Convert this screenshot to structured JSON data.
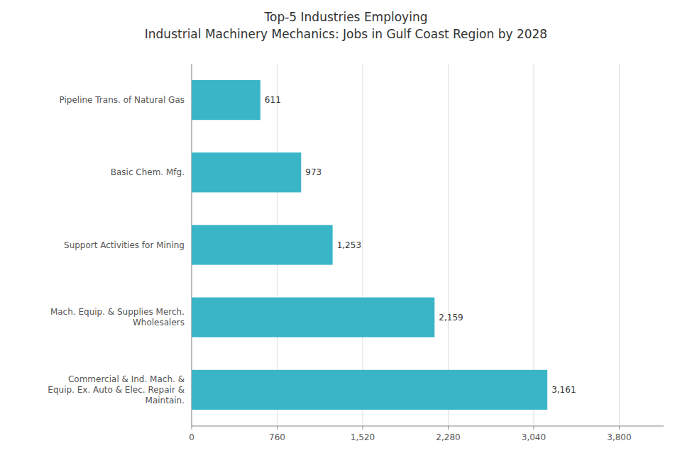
{
  "chart_data": {
    "type": "bar",
    "orientation": "horizontal",
    "title": "Top-5 Industries Employing\nIndustrial Machinery Mechanics: Jobs in Gulf Coast Region by 2028",
    "categories": [
      "Commercial & Ind. Mach. &\nEquip. Ex. Auto & Elec. Repair &\nMaintain.",
      "Mach. Equip. & Supplies Merch.\nWholesalers",
      "Support Activities for Mining",
      "Basic Chem. Mfg.",
      "Pipeline Trans. of Natural Gas"
    ],
    "values": [
      3161,
      2159,
      1253,
      973,
      611
    ],
    "value_labels": [
      "3,161",
      "2,159",
      "1,253",
      "973",
      "611"
    ],
    "data_labels": true,
    "color": "#3ab5c8",
    "xlim": [
      0,
      4194.4
    ],
    "xticks": [
      0,
      760,
      {
        "value": 1520,
        "label": "1,520"
      },
      {
        "value": 2280,
        "label": "2,280"
      },
      {
        "value": 3040,
        "label": "3,040"
      },
      {
        "value": 3800,
        "label": "3,800"
      }
    ],
    "grid": true
  }
}
